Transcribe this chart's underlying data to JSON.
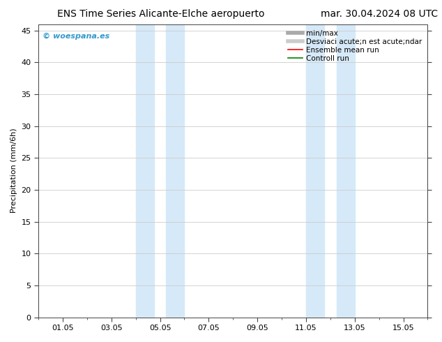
{
  "title_left": "ENS Time Series Alicante-Elche aeropuerto",
  "title_right": "mar. 30.04.2024 08 UTC",
  "ylabel": "Precipitation (mm/6h)",
  "watermark": "© woespana.es",
  "xtick_labels": [
    "01.05",
    "03.05",
    "05.05",
    "07.05",
    "09.05",
    "11.05",
    "13.05",
    "15.05"
  ],
  "xtick_positions": [
    1,
    3,
    5,
    7,
    9,
    11,
    13,
    15
  ],
  "xlim": [
    0,
    16
  ],
  "ylim": [
    0,
    46
  ],
  "ytick_positions": [
    0,
    5,
    10,
    15,
    20,
    25,
    30,
    35,
    40,
    45
  ],
  "shaded_pairs": [
    {
      "xmin": 4.0,
      "xmax": 4.75
    },
    {
      "xmin": 5.25,
      "xmax": 6.0
    },
    {
      "xmin": 11.0,
      "xmax": 11.75
    },
    {
      "xmin": 12.25,
      "xmax": 13.0
    }
  ],
  "shade_color": "#d6e9f8",
  "legend_labels": [
    "min/max",
    "Desviaci acute;n est acute;ndar",
    "Ensemble mean run",
    "Controll run"
  ],
  "legend_colors": [
    "#aaaaaa",
    "#cccccc",
    "red",
    "green"
  ],
  "legend_lws": [
    4,
    4,
    1.2,
    1.2
  ],
  "bg_color": "#ffffff",
  "plot_bg_color": "#ffffff",
  "grid_color": "#cccccc",
  "watermark_color": "#3399cc",
  "title_fontsize": 10,
  "label_fontsize": 8,
  "tick_fontsize": 8,
  "legend_fontsize": 7.5
}
